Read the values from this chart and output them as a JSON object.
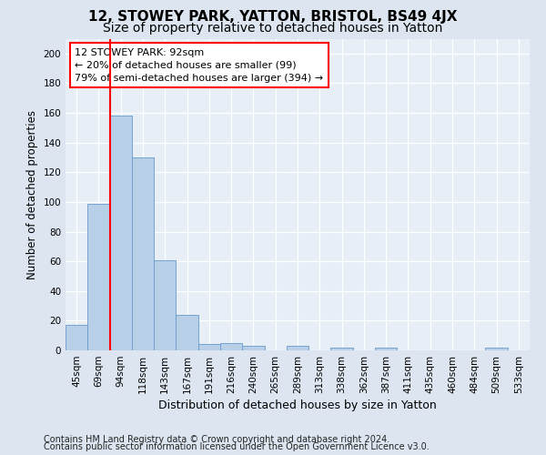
{
  "title": "12, STOWEY PARK, YATTON, BRISTOL, BS49 4JX",
  "subtitle": "Size of property relative to detached houses in Yatton",
  "xlabel": "Distribution of detached houses by size in Yatton",
  "ylabel": "Number of detached properties",
  "categories": [
    "45sqm",
    "69sqm",
    "94sqm",
    "118sqm",
    "143sqm",
    "167sqm",
    "191sqm",
    "216sqm",
    "240sqm",
    "265sqm",
    "289sqm",
    "313sqm",
    "338sqm",
    "362sqm",
    "387sqm",
    "411sqm",
    "435sqm",
    "460sqm",
    "484sqm",
    "509sqm",
    "533sqm"
  ],
  "values": [
    17,
    99,
    158,
    130,
    61,
    24,
    4,
    5,
    3,
    0,
    3,
    0,
    2,
    0,
    2,
    0,
    0,
    0,
    0,
    2,
    0
  ],
  "bar_color": "#b8cfe8",
  "bar_edge_color": "#6699cc",
  "annotation_text": "12 STOWEY PARK: 92sqm\n← 20% of detached houses are smaller (99)\n79% of semi-detached houses are larger (394) →",
  "annotation_box_color": "white",
  "annotation_box_edge_color": "red",
  "vline_color": "red",
  "ylim": [
    0,
    210
  ],
  "yticks": [
    0,
    20,
    40,
    60,
    80,
    100,
    120,
    140,
    160,
    180,
    200
  ],
  "footer_line1": "Contains HM Land Registry data © Crown copyright and database right 2024.",
  "footer_line2": "Contains public sector information licensed under the Open Government Licence v3.0.",
  "background_color": "#dde6f0",
  "plot_background_color": "#e8eef6",
  "grid_color": "white",
  "title_fontsize": 11,
  "subtitle_fontsize": 10,
  "xlabel_fontsize": 9,
  "ylabel_fontsize": 8.5,
  "tick_fontsize": 7.5,
  "footer_fontsize": 7,
  "annotation_fontsize": 8
}
